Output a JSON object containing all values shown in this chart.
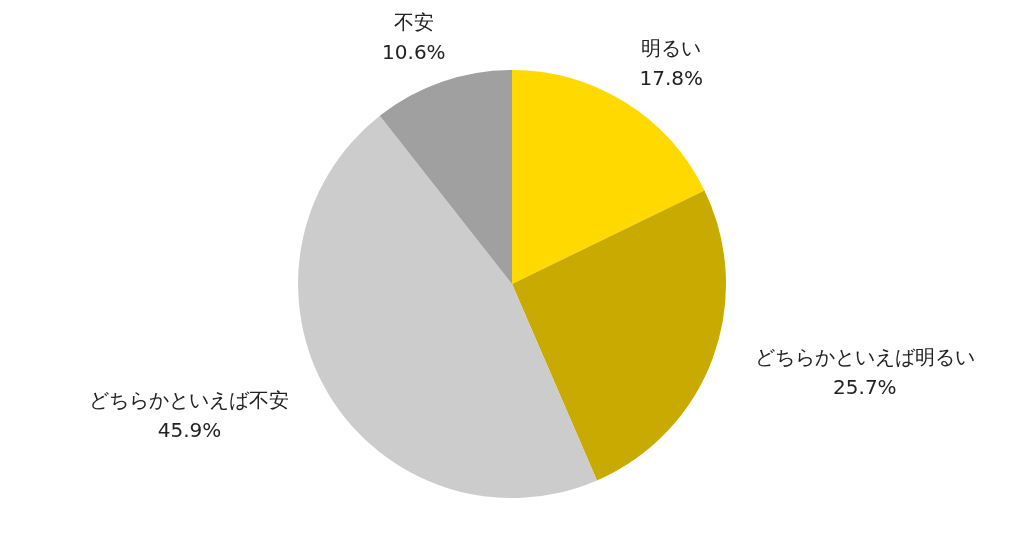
{
  "chart_data": {
    "type": "pie",
    "categories": [
      "明るい",
      "どちらかといえば明るい",
      "どちらかといえば不安",
      "不安"
    ],
    "values": [
      17.8,
      25.7,
      45.9,
      10.6
    ],
    "colors": [
      "#ffd900",
      "#c8aa00",
      "#cccccc",
      "#a0a0a0"
    ],
    "value_labels": [
      "17.8%",
      "25.7%",
      "45.9%",
      "10.6%"
    ],
    "legend": false
  }
}
